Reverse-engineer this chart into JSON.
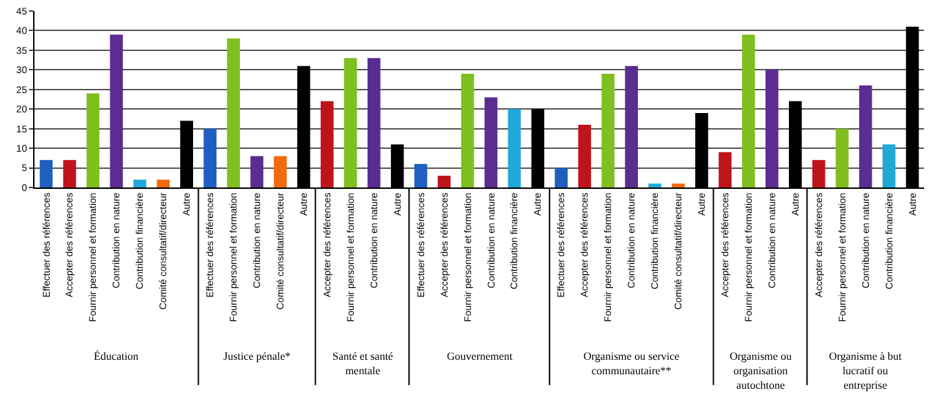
{
  "chart_data": {
    "type": "bar",
    "categories": [
      "Effectuer des références",
      "Accepter des références",
      "Fournir personnel et formation",
      "Contribution en nature",
      "Contribution financière",
      "Comité consultatif/directeur",
      "Autre",
      "Effectuer des références",
      "Fournir personnel et formation",
      "Contribution en nature",
      "Comité consultatif/directeur",
      "Autre",
      "Accepter des références",
      "Fournir personnel et formation",
      "Contribution en nature",
      "Autre",
      "Effectuer des références",
      "Accepter des références",
      "Fournir personnel et formation",
      "Contribution en nature",
      "Contribution financière",
      "Autre",
      "Effectuer des références",
      "Accepter des références",
      "Fournir personnel et formation",
      "Contribution en nature",
      "Contribution financière",
      "Comité consultatif/directeur",
      "Autre",
      "Accepter des références",
      "Fournir personnel et formation",
      "Contribution en nature",
      "Autre",
      "Accepter des références",
      "Fournir personnel et formation",
      "Contribution en nature",
      "Contribution financière",
      "Autre"
    ],
    "values": [
      7,
      7,
      24,
      39,
      2,
      2,
      17,
      15,
      38,
      8,
      8,
      31,
      22,
      33,
      33,
      11,
      6,
      3,
      29,
      23,
      20,
      20,
      5,
      16,
      29,
      31,
      1,
      1,
      19,
      9,
      39,
      30,
      22,
      7,
      15,
      26,
      11,
      41
    ],
    "colors": [
      "#1f5fbf",
      "#c0141c",
      "#7fbf1f",
      "#5a2d91",
      "#1fa8d8",
      "#f26a10",
      "#000000",
      "#1f5fbf",
      "#7fbf1f",
      "#5a2d91",
      "#f26a10",
      "#000000",
      "#c0141c",
      "#7fbf1f",
      "#5a2d91",
      "#000000",
      "#1f5fbf",
      "#c0141c",
      "#7fbf1f",
      "#5a2d91",
      "#1fa8d8",
      "#000000",
      "#1f5fbf",
      "#c0141c",
      "#7fbf1f",
      "#5a2d91",
      "#1fa8d8",
      "#f26a10",
      "#000000",
      "#c0141c",
      "#7fbf1f",
      "#5a2d91",
      "#000000",
      "#c0141c",
      "#7fbf1f",
      "#5a2d91",
      "#1fa8d8",
      "#000000"
    ],
    "ylim": [
      0,
      45
    ],
    "yticks": [
      0,
      5,
      10,
      15,
      20,
      25,
      30,
      35,
      40,
      45
    ],
    "grid": "y",
    "legend": false,
    "annotations": [
      "Éducation",
      "Justice pénale*",
      "Santé et santé mentale",
      "Gouvernement",
      "Organisme ou service communautaire**",
      "Organisme ou organisation autochtone",
      "Organisme à but lucratif ou entreprise"
    ]
  }
}
